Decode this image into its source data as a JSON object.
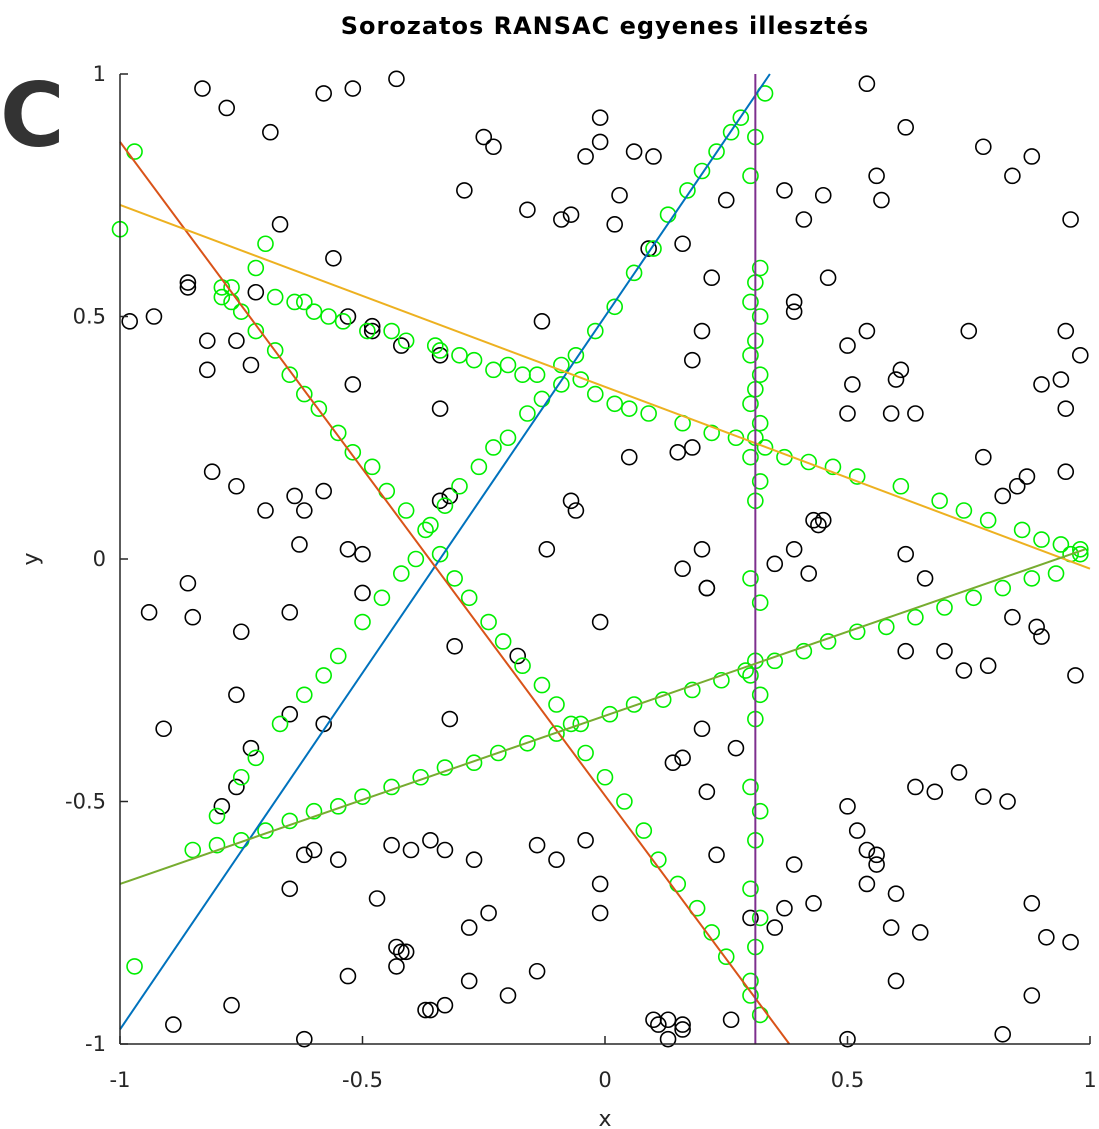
{
  "panel_label": "C",
  "chart_data": {
    "type": "scatter",
    "title": "Sorozatos RANSAC egyenes illesztés",
    "xlabel": "x",
    "ylabel": "y",
    "xlim": [
      -1,
      1
    ],
    "ylim": [
      -1,
      1
    ],
    "xticks": [
      -1,
      -0.5,
      0,
      0.5,
      1
    ],
    "yticks": [
      -1,
      -0.5,
      0,
      0.5,
      1
    ],
    "xtick_labels": [
      "-1",
      "-0.5",
      "0",
      "0.5",
      "1"
    ],
    "ytick_labels": [
      "-1",
      "-0.5",
      "0",
      "0.5",
      "1"
    ],
    "grid": false,
    "legend": "none",
    "colors": {
      "outlier": "#000000",
      "inlier": "#00ee00",
      "line_blue": "#0072bd",
      "line_red": "#d95319",
      "line_yellow": "#edb120",
      "line_purple": "#7e2f8e",
      "line_green": "#77ac30"
    },
    "lines": [
      {
        "color": "#0072bd",
        "x": [
          -1.0,
          0.34
        ],
        "y": [
          -0.97,
          1.0
        ]
      },
      {
        "color": "#d95319",
        "x": [
          -1.0,
          0.38
        ],
        "y": [
          0.86,
          -1.0
        ]
      },
      {
        "color": "#edb120",
        "x": [
          -1.0,
          1.0
        ],
        "y": [
          0.73,
          -0.02
        ]
      },
      {
        "color": "#7e2f8e",
        "x": [
          0.31,
          0.31
        ],
        "y": [
          1.0,
          -1.0
        ]
      },
      {
        "color": "#77ac30",
        "x": [
          -1.0,
          0.99
        ],
        "y": [
          -0.67,
          0.02
        ]
      }
    ],
    "outliers": {
      "x": [
        -0.83,
        -0.78,
        -0.69,
        -0.58,
        -0.52,
        -0.43,
        -0.25,
        -0.23,
        -0.29,
        -0.16,
        -0.09,
        -0.07,
        -0.04,
        -0.01,
        -0.01,
        0.03,
        0.06,
        0.1,
        0.16,
        0.22,
        0.25,
        0.37,
        0.41,
        0.45,
        0.54,
        0.56,
        0.57,
        0.62,
        0.78,
        0.84,
        0.88,
        0.96,
        -0.98,
        -0.93,
        -0.86,
        -0.86,
        -0.82,
        -0.82,
        -0.76,
        -0.73,
        -0.72,
        -0.67,
        -0.56,
        -0.53,
        -0.52,
        -0.48,
        -0.48,
        -0.42,
        -0.34,
        -0.34,
        -0.13,
        0.02,
        0.09,
        0.18,
        0.2,
        0.39,
        0.39,
        0.46,
        0.5,
        0.51,
        0.5,
        0.54,
        0.6,
        0.61,
        0.59,
        0.64,
        0.75,
        0.9,
        0.94,
        0.95,
        0.98,
        0.95,
        -0.81,
        -0.76,
        -0.7,
        -0.64,
        -0.62,
        -0.58,
        -0.63,
        -0.53,
        -0.5,
        -0.32,
        -0.34,
        -0.07,
        -0.06,
        -0.12,
        0.05,
        0.15,
        0.18,
        0.42,
        0.43,
        0.44,
        0.45,
        0.62,
        0.78,
        0.82,
        0.87,
        0.85,
        0.95,
        -0.94,
        -0.85,
        -0.86,
        -0.75,
        -0.76,
        -0.65,
        -0.58,
        -0.5,
        -0.32,
        -0.31,
        -0.18,
        -0.01,
        0.2,
        0.21,
        0.21,
        0.16,
        0.27,
        0.35,
        0.39,
        0.62,
        0.66,
        0.7,
        0.74,
        0.79,
        0.84,
        0.89,
        0.9,
        0.97,
        -0.91,
        -0.76,
        -0.79,
        -0.65,
        -0.73,
        -0.62,
        -0.6,
        -0.55,
        -0.44,
        -0.4,
        -0.36,
        -0.33,
        -0.14,
        -0.04,
        0.14,
        0.16,
        0.2,
        0.23,
        0.21,
        0.39,
        0.5,
        0.52,
        0.54,
        0.56,
        0.56,
        0.64,
        0.68,
        0.73,
        0.78,
        0.83,
        -0.65,
        -0.47,
        -0.42,
        -0.43,
        -0.27,
        -0.28,
        -0.24,
        -0.14,
        -0.1,
        -0.01,
        -0.01,
        0.1,
        0.13,
        0.16,
        0.3,
        0.35,
        0.37,
        0.43,
        0.54,
        0.59,
        0.6,
        0.65,
        0.6,
        0.88,
        0.91,
        0.88,
        0.96,
        -0.89,
        -0.77,
        -0.62,
        -0.53,
        -0.43,
        -0.41,
        -0.37,
        -0.36,
        -0.33,
        -0.28,
        -0.2,
        0.11,
        0.13,
        0.16,
        0.26,
        0.5,
        0.82
      ],
      "y": [
        0.97,
        0.93,
        0.88,
        0.96,
        0.97,
        0.99,
        0.87,
        0.85,
        0.76,
        0.72,
        0.7,
        0.71,
        0.83,
        0.86,
        0.91,
        0.75,
        0.84,
        0.83,
        0.65,
        0.58,
        0.74,
        0.76,
        0.7,
        0.75,
        0.98,
        0.79,
        0.74,
        0.89,
        0.85,
        0.79,
        0.83,
        0.7,
        0.49,
        0.5,
        0.56,
        0.57,
        0.45,
        0.39,
        0.45,
        0.4,
        0.55,
        0.69,
        0.62,
        0.5,
        0.36,
        0.47,
        0.48,
        0.44,
        0.42,
        0.31,
        0.49,
        0.69,
        0.64,
        0.41,
        0.47,
        0.53,
        0.51,
        0.58,
        0.44,
        0.36,
        0.3,
        0.47,
        0.37,
        0.39,
        0.3,
        0.3,
        0.47,
        0.36,
        0.37,
        0.31,
        0.42,
        0.47,
        0.18,
        0.15,
        0.1,
        0.13,
        0.1,
        0.14,
        0.03,
        0.02,
        0.01,
        0.13,
        0.12,
        0.12,
        0.1,
        0.02,
        0.21,
        0.22,
        0.23,
        -0.03,
        0.08,
        0.07,
        0.08,
        0.01,
        0.21,
        0.13,
        0.17,
        0.15,
        0.18,
        -0.11,
        -0.12,
        -0.05,
        -0.15,
        -0.28,
        -0.11,
        -0.34,
        -0.07,
        -0.33,
        -0.18,
        -0.2,
        -0.13,
        0.02,
        -0.06,
        -0.06,
        -0.02,
        -0.39,
        -0.01,
        0.02,
        -0.19,
        -0.04,
        -0.19,
        -0.23,
        -0.22,
        -0.12,
        -0.14,
        -0.16,
        -0.24,
        -0.35,
        -0.47,
        -0.51,
        -0.32,
        -0.39,
        -0.61,
        -0.6,
        -0.62,
        -0.59,
        -0.6,
        -0.58,
        -0.6,
        -0.59,
        -0.58,
        -0.42,
        -0.41,
        -0.35,
        -0.61,
        -0.48,
        -0.63,
        -0.51,
        -0.56,
        -0.6,
        -0.63,
        -0.61,
        -0.47,
        -0.48,
        -0.44,
        -0.49,
        -0.5,
        -0.68,
        -0.7,
        -0.81,
        -0.84,
        -0.62,
        -0.76,
        -0.73,
        -0.85,
        -0.62,
        -0.73,
        -0.67,
        -0.95,
        -0.95,
        -0.97,
        -0.74,
        -0.76,
        -0.72,
        -0.71,
        -0.67,
        -0.76,
        -0.69,
        -0.77,
        -0.87,
        -0.71,
        -0.78,
        -0.9,
        -0.79,
        -0.96,
        -0.92,
        -0.99,
        -0.86,
        -0.8,
        -0.81,
        -0.93,
        -0.93,
        -0.92,
        -0.87,
        -0.9,
        -0.96,
        -0.99,
        -0.96,
        -0.95,
        -0.99,
        -0.98
      ]
    },
    "inliers": {
      "x": [
        -1.0,
        -0.97,
        -0.7,
        -0.72,
        -0.77,
        -0.79,
        -0.68,
        -0.64,
        -0.62,
        -0.6,
        -0.57,
        -0.54,
        -0.49,
        -0.44,
        -0.41,
        -0.35,
        -0.34,
        -0.3,
        -0.27,
        -0.23,
        -0.2,
        -0.17,
        -0.14,
        -0.09,
        -0.05,
        -0.02,
        0.02,
        0.05,
        0.09,
        0.16,
        0.22,
        0.27,
        0.33,
        0.37,
        0.42,
        0.47,
        0.52,
        0.61,
        0.69,
        0.74,
        0.79,
        0.86,
        0.9,
        0.94,
        0.98,
        0.96,
        -0.97,
        -0.85,
        -0.8,
        -0.75,
        -0.72,
        -0.67,
        -0.62,
        -0.58,
        -0.55,
        -0.5,
        -0.46,
        -0.42,
        -0.39,
        -0.36,
        -0.33,
        -0.3,
        -0.26,
        -0.23,
        -0.2,
        -0.16,
        -0.13,
        -0.09,
        -0.06,
        -0.02,
        0.02,
        0.06,
        0.1,
        0.13,
        0.17,
        0.2,
        0.23,
        0.26,
        0.28,
        0.33,
        -0.79,
        -0.77,
        -0.75,
        -0.72,
        -0.68,
        -0.65,
        -0.62,
        -0.59,
        -0.55,
        -0.52,
        -0.48,
        -0.45,
        -0.41,
        -0.37,
        -0.34,
        -0.31,
        -0.28,
        -0.24,
        -0.21,
        -0.17,
        -0.13,
        -0.1,
        -0.07,
        -0.04,
        0.0,
        0.04,
        0.08,
        0.11,
        0.15,
        0.19,
        0.22,
        0.25,
        0.3,
        -0.8,
        -0.75,
        -0.7,
        -0.65,
        -0.6,
        -0.55,
        -0.5,
        -0.44,
        -0.38,
        -0.33,
        -0.27,
        -0.22,
        -0.16,
        -0.1,
        -0.05,
        0.01,
        0.06,
        0.12,
        0.18,
        0.24,
        0.29,
        0.35,
        0.41,
        0.46,
        0.52,
        0.58,
        0.64,
        0.7,
        0.76,
        0.82,
        0.88,
        0.93,
        0.98,
        0.31,
        0.3,
        0.32,
        0.31,
        0.3,
        0.32,
        0.31,
        0.3,
        0.32,
        0.31,
        0.3,
        0.32,
        0.31,
        0.3,
        0.32,
        0.31,
        0.3,
        0.32,
        0.31,
        0.3,
        0.32,
        0.31,
        0.3,
        0.32,
        0.31,
        0.3,
        0.32,
        0.31,
        0.3,
        0.32
      ],
      "y": [
        0.68,
        0.84,
        0.65,
        0.6,
        0.56,
        0.54,
        0.54,
        0.53,
        0.53,
        0.51,
        0.5,
        0.49,
        0.47,
        0.47,
        0.45,
        0.44,
        0.43,
        0.42,
        0.41,
        0.39,
        0.4,
        0.38,
        0.38,
        0.36,
        0.37,
        0.34,
        0.32,
        0.31,
        0.3,
        0.28,
        0.26,
        0.25,
        0.23,
        0.21,
        0.2,
        0.19,
        0.17,
        0.15,
        0.12,
        0.1,
        0.08,
        0.06,
        0.04,
        0.03,
        0.02,
        0.01,
        -0.84,
        -0.6,
        -0.53,
        -0.45,
        -0.41,
        -0.34,
        -0.28,
        -0.24,
        -0.2,
        -0.13,
        -0.08,
        -0.03,
        0.0,
        0.07,
        0.11,
        0.15,
        0.19,
        0.23,
        0.25,
        0.3,
        0.33,
        0.4,
        0.42,
        0.47,
        0.52,
        0.59,
        0.64,
        0.71,
        0.76,
        0.8,
        0.84,
        0.88,
        0.91,
        0.96,
        0.56,
        0.53,
        0.51,
        0.47,
        0.43,
        0.38,
        0.34,
        0.31,
        0.26,
        0.22,
        0.19,
        0.14,
        0.1,
        0.06,
        0.01,
        -0.04,
        -0.08,
        -0.13,
        -0.17,
        -0.22,
        -0.26,
        -0.3,
        -0.34,
        -0.4,
        -0.45,
        -0.5,
        -0.56,
        -0.62,
        -0.67,
        -0.72,
        -0.77,
        -0.82,
        -0.9,
        -0.59,
        -0.58,
        -0.56,
        -0.54,
        -0.52,
        -0.51,
        -0.49,
        -0.47,
        -0.45,
        -0.43,
        -0.42,
        -0.4,
        -0.38,
        -0.36,
        -0.34,
        -0.32,
        -0.3,
        -0.29,
        -0.27,
        -0.25,
        -0.23,
        -0.21,
        -0.19,
        -0.17,
        -0.15,
        -0.14,
        -0.12,
        -0.1,
        -0.08,
        -0.06,
        -0.04,
        -0.03,
        0.01,
        0.87,
        0.79,
        0.6,
        0.57,
        0.53,
        0.5,
        0.45,
        0.42,
        0.38,
        0.35,
        0.32,
        0.28,
        0.25,
        0.21,
        0.16,
        0.12,
        -0.04,
        -0.09,
        -0.21,
        -0.24,
        -0.28,
        -0.33,
        -0.47,
        -0.52,
        -0.58,
        -0.68,
        -0.74,
        -0.8,
        -0.87,
        -0.94
      ]
    }
  }
}
